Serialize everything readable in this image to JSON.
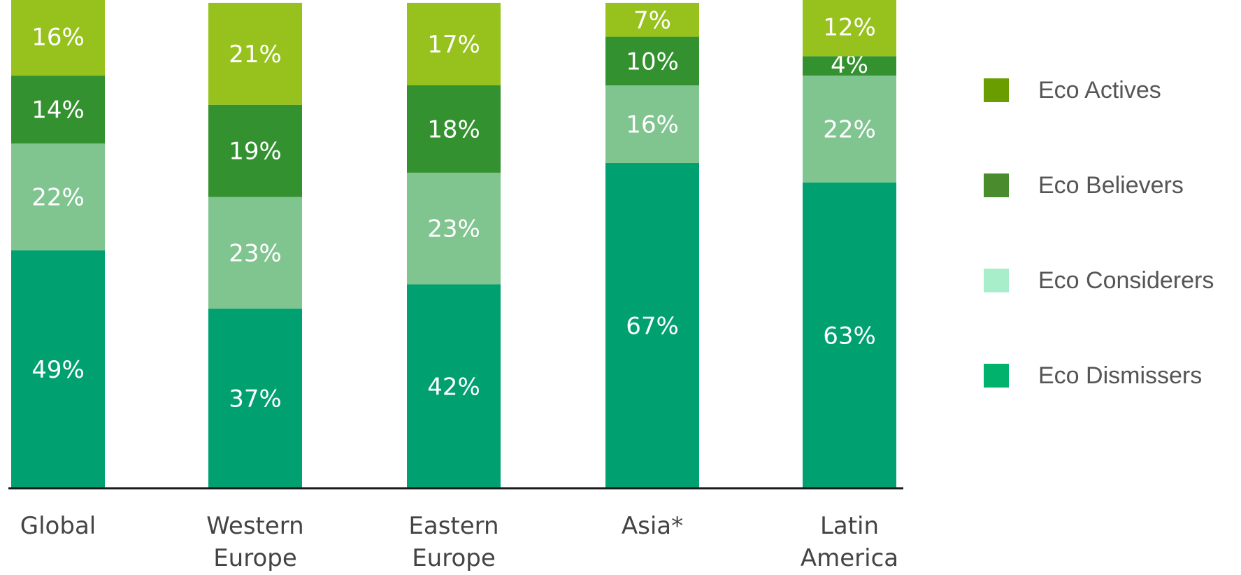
{
  "chart_data": {
    "type": "bar",
    "stacked": true,
    "normalized_to": 100,
    "categories": [
      [
        "Global"
      ],
      [
        "Western",
        "Europe"
      ],
      [
        "Eastern",
        "Europe"
      ],
      [
        "Asia*"
      ],
      [
        "Latin",
        "America"
      ]
    ],
    "series": [
      {
        "name": "Eco Dismissers",
        "color": "#00a070",
        "values": [
          49,
          37,
          42,
          67,
          63
        ],
        "labels": [
          "49%",
          "37%",
          "42%",
          "67%",
          "63%"
        ]
      },
      {
        "name": "Eco Considerers",
        "color": "#80c490",
        "values": [
          22,
          23,
          23,
          16,
          22
        ],
        "labels": [
          "22%",
          "23%",
          "23%",
          "16%",
          "22%"
        ]
      },
      {
        "name": "Eco Believers",
        "color": "#33912f",
        "values": [
          14,
          19,
          18,
          10,
          4
        ],
        "labels": [
          "14%",
          "19%",
          "18%",
          "10%",
          "4%"
        ]
      },
      {
        "name": "Eco Actives",
        "color": "#97c21d",
        "values": [
          16,
          21,
          17,
          7,
          12
        ],
        "labels": [
          "16%",
          "21%",
          "17%",
          "7%",
          "12%"
        ]
      }
    ],
    "legend_position": "right",
    "grid": false,
    "title": "",
    "xlabel": "",
    "ylabel": ""
  },
  "legend": [
    {
      "label": "Eco Actives",
      "color": "#6a9e00"
    },
    {
      "label": "Eco Believers",
      "color": "#4a8b2d"
    },
    {
      "label": "Eco Considerers",
      "color": "#a8eecb"
    },
    {
      "label": "Eco Dismissers",
      "color": "#00b26c"
    }
  ]
}
